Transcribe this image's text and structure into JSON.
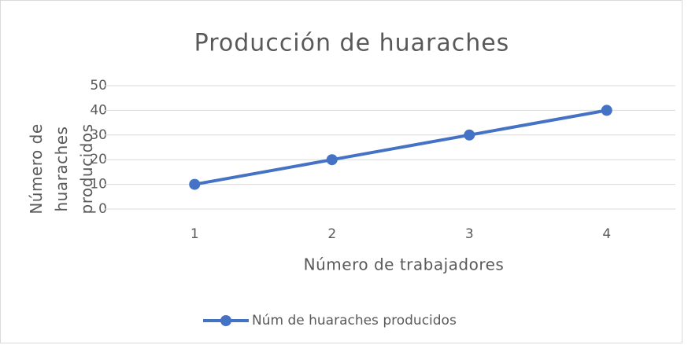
{
  "chart_data": {
    "type": "line",
    "title": "Producción de huaraches",
    "x_label": "Número de trabajadores",
    "y_label": "Número de huaraches producidos",
    "categories": [
      "1",
      "2",
      "3",
      "4"
    ],
    "series": [
      {
        "name": "Núm de huaraches producidos",
        "color": "#4472c4",
        "values": [
          10,
          20,
          30,
          40
        ]
      }
    ],
    "ylim": [
      0,
      50
    ],
    "yticks": [
      0,
      10,
      20,
      30,
      40,
      50
    ],
    "grid": true,
    "legend": "bottom"
  }
}
